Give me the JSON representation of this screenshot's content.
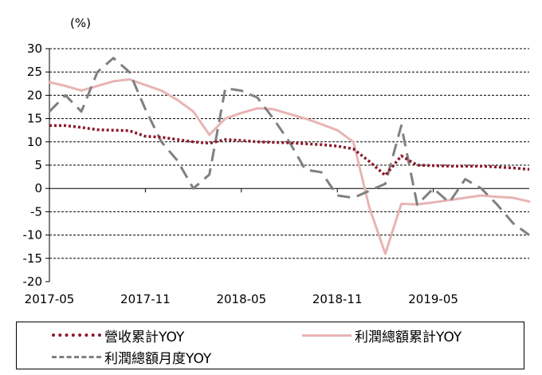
{
  "chart_data": {
    "type": "line",
    "unit_label": "(%)",
    "ylim": [
      -20,
      30
    ],
    "y_ticks": [
      30,
      25,
      20,
      15,
      10,
      5,
      0,
      -5,
      -10,
      -15,
      -20
    ],
    "x_tick_labels": [
      "2017-05",
      "2017-11",
      "2018-05",
      "2018-11",
      "2019-05"
    ],
    "x_tick_index": [
      0,
      6,
      12,
      18,
      24
    ],
    "x_range": [
      0,
      30
    ],
    "grid": true,
    "legend_position": "bottom",
    "series": [
      {
        "name": "營收累計YOY",
        "color": "#8b1a2b",
        "dash": "dotted",
        "values": [
          13.5,
          13.5,
          13.1,
          12.6,
          12.5,
          12.4,
          11.2,
          11.0,
          10.5,
          10.0,
          9.7,
          10.5,
          10.3,
          10.0,
          9.9,
          9.8,
          9.6,
          9.4,
          9.1,
          8.5,
          5.8,
          2.8,
          7.0,
          5.0,
          4.9,
          4.8,
          4.8,
          4.8,
          4.6,
          4.4,
          4.1
        ]
      },
      {
        "name": "利潤總額累計YOY",
        "color": "#e8b4b4",
        "dash": "solid",
        "values": [
          22.8,
          22.0,
          21.0,
          22.0,
          23.0,
          23.4,
          22.2,
          21.0,
          19.0,
          16.5,
          11.5,
          15.0,
          16.2,
          17.2,
          17.0,
          16.0,
          15.0,
          13.8,
          12.5,
          10.0,
          -4.0,
          -14.0,
          -3.3,
          -3.4,
          -3.0,
          -2.5,
          -2.0,
          -1.5,
          -1.8,
          -2.0,
          -2.8
        ]
      },
      {
        "name": "利潤總額月度YOY",
        "color": "#808080",
        "dash": "dashed",
        "values": [
          16.5,
          20.0,
          16.5,
          25.0,
          28.0,
          25.0,
          17.0,
          10.0,
          6.0,
          0.0,
          3.0,
          21.5,
          21.0,
          19.5,
          15.0,
          10.0,
          4.0,
          3.5,
          -1.5,
          -2.0,
          -0.5,
          1.0,
          13.5,
          -3.5,
          0.0,
          -3.0,
          2.0,
          0.0,
          -3.5,
          -7.5,
          -10.0
        ]
      }
    ]
  }
}
